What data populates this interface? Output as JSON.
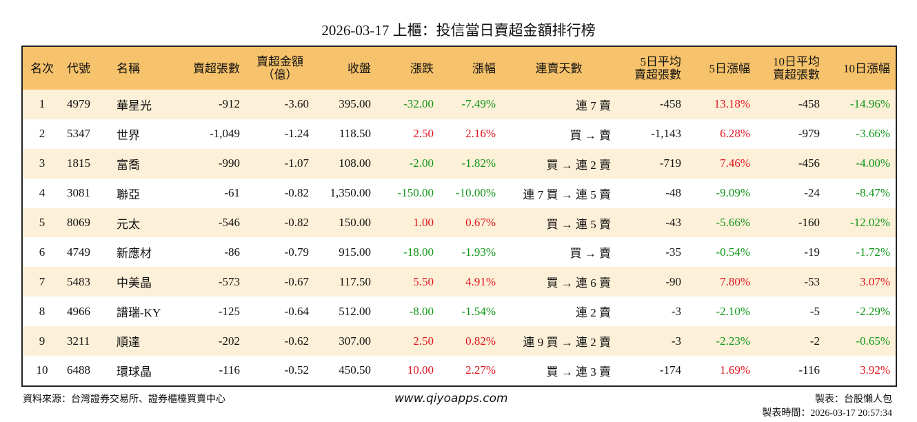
{
  "header": {
    "title": "2026-03-17 上櫃：投信當日賣超金額排行榜"
  },
  "table": {
    "columns": [
      "名次",
      "代號",
      "名稱",
      "賣超張數",
      "賣超金額\n（億）",
      "收盤",
      "漲跌",
      "漲幅",
      "連賣天數",
      "5日平均\n賣超張數",
      "5日漲幅",
      "10日平均\n賣超張數",
      "10日漲幅"
    ],
    "rows": [
      [
        "1",
        "4979",
        "華星光",
        "-912",
        "-3.60",
        "395.00",
        "-32.00",
        "-7.49%",
        "連 7 賣",
        "-458",
        "13.18%",
        "-458",
        "-14.96%"
      ],
      [
        "2",
        "5347",
        "世界",
        "-1,049",
        "-1.24",
        "118.50",
        "2.50",
        "2.16%",
        "買 → 賣",
        "-1,143",
        "6.28%",
        "-979",
        "-3.66%"
      ],
      [
        "3",
        "1815",
        "富喬",
        "-990",
        "-1.07",
        "108.00",
        "-2.00",
        "-1.82%",
        "買 → 連 2 賣",
        "-719",
        "7.46%",
        "-456",
        "-4.00%"
      ],
      [
        "4",
        "3081",
        "聯亞",
        "-61",
        "-0.82",
        "1,350.00",
        "-150.00",
        "-10.00%",
        "連 7 買 → 連 5 賣",
        "-48",
        "-9.09%",
        "-24",
        "-8.47%"
      ],
      [
        "5",
        "8069",
        "元太",
        "-546",
        "-0.82",
        "150.00",
        "1.00",
        "0.67%",
        "買 → 連 5 賣",
        "-43",
        "-5.66%",
        "-160",
        "-12.02%"
      ],
      [
        "6",
        "4749",
        "新應材",
        "-86",
        "-0.79",
        "915.00",
        "-18.00",
        "-1.93%",
        "買 → 賣",
        "-35",
        "-0.54%",
        "-19",
        "-1.72%"
      ],
      [
        "7",
        "5483",
        "中美晶",
        "-573",
        "-0.67",
        "117.50",
        "5.50",
        "4.91%",
        "買 → 連 6 賣",
        "-90",
        "7.80%",
        "-53",
        "3.07%"
      ],
      [
        "8",
        "4966",
        "譜瑞-KY",
        "-125",
        "-0.64",
        "512.00",
        "-8.00",
        "-1.54%",
        "連 2 賣",
        "-3",
        "-2.10%",
        "-5",
        "-2.29%"
      ],
      [
        "9",
        "3211",
        "順達",
        "-202",
        "-0.62",
        "307.00",
        "2.50",
        "0.82%",
        "連 9 買 → 連 2 賣",
        "-3",
        "-2.23%",
        "-2",
        "-0.65%"
      ],
      [
        "10",
        "6488",
        "環球晶",
        "-116",
        "-0.52",
        "450.50",
        "10.00",
        "2.27%",
        "買 → 連 3 賣",
        "-174",
        "1.69%",
        "-116",
        "3.92%"
      ]
    ]
  },
  "footer": {
    "source": "資料來源：台灣證券交易所、證券櫃檯買賣中心",
    "website": "www.qiyoapps.com",
    "author": "製表：台股懶人包",
    "timestamp": "製表時間：2026-03-17 20:57:34"
  }
}
